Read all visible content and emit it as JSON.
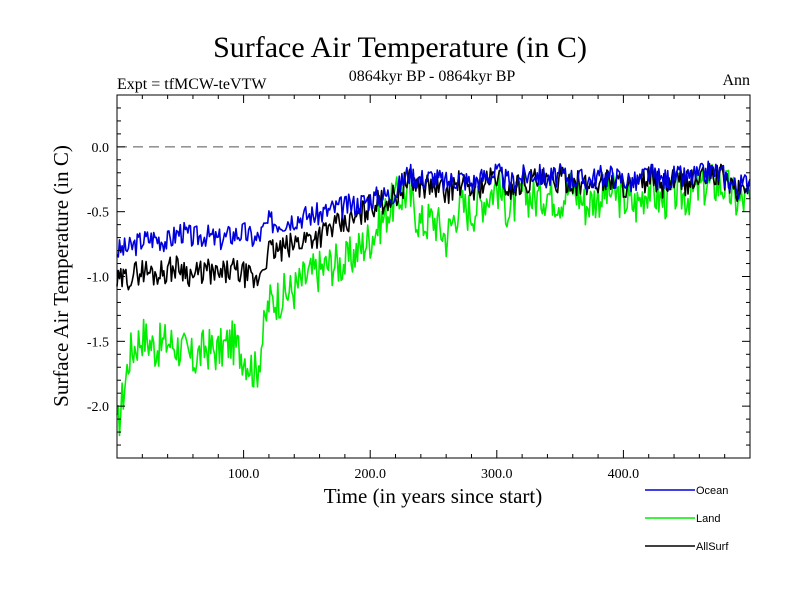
{
  "chart_data": {
    "type": "line",
    "title": "Surface Air Temperature (in C)",
    "subtitle_left": "Expt = tfMCW-teVTW",
    "subtitle_center": "0864kyr BP - 0864kyr BP",
    "subtitle_right": "Ann",
    "xlabel": "Time (in years since start)",
    "ylabel": "Surface Air Temperature (in C)",
    "xlim": [
      0,
      500
    ],
    "ylim": [
      -2.4,
      0.4
    ],
    "x_ticks": [
      100,
      200,
      300,
      400
    ],
    "x_tick_labels": [
      "100.0",
      "200.0",
      "300.0",
      "400.0"
    ],
    "y_ticks": [
      0.0,
      -0.5,
      -1.0,
      -1.5,
      -2.0
    ],
    "y_tick_labels": [
      "0.0",
      "-0.5",
      "-1.0",
      "-1.5",
      "-2.0"
    ],
    "reference_line": {
      "y": 0.0,
      "style": "dashed"
    },
    "series": [
      {
        "name": "Ocean",
        "color": "#0000dd",
        "x": [
          0,
          10,
          20,
          30,
          40,
          50,
          60,
          70,
          80,
          90,
          100,
          110,
          120,
          130,
          140,
          150,
          160,
          170,
          180,
          190,
          200,
          210,
          220,
          230,
          240,
          250,
          260,
          270,
          280,
          290,
          300,
          310,
          320,
          330,
          340,
          350,
          360,
          370,
          380,
          390,
          400,
          410,
          420,
          430,
          440,
          450,
          460,
          470,
          480,
          490,
          500
        ],
        "values": [
          -0.8,
          -0.78,
          -0.72,
          -0.7,
          -0.73,
          -0.65,
          -0.7,
          -0.68,
          -0.72,
          -0.68,
          -0.66,
          -0.72,
          -0.58,
          -0.58,
          -0.55,
          -0.53,
          -0.52,
          -0.48,
          -0.46,
          -0.44,
          -0.4,
          -0.38,
          -0.35,
          -0.2,
          -0.25,
          -0.23,
          -0.28,
          -0.23,
          -0.28,
          -0.23,
          -0.2,
          -0.28,
          -0.23,
          -0.2,
          -0.25,
          -0.22,
          -0.24,
          -0.26,
          -0.23,
          -0.22,
          -0.25,
          -0.28,
          -0.2,
          -0.26,
          -0.23,
          -0.24,
          -0.22,
          -0.18,
          -0.22,
          -0.32,
          -0.25
        ]
      },
      {
        "name": "Land",
        "color": "#00ee00",
        "x": [
          0,
          10,
          20,
          30,
          40,
          50,
          60,
          70,
          80,
          90,
          100,
          110,
          120,
          130,
          140,
          150,
          160,
          170,
          180,
          190,
          200,
          210,
          220,
          230,
          240,
          250,
          260,
          270,
          280,
          290,
          300,
          310,
          320,
          330,
          340,
          350,
          360,
          370,
          380,
          390,
          400,
          410,
          420,
          430,
          440,
          450,
          460,
          470,
          480,
          490,
          500
        ],
        "values": [
          -2.2,
          -1.6,
          -1.45,
          -1.55,
          -1.5,
          -1.55,
          -1.65,
          -1.55,
          -1.58,
          -1.5,
          -1.6,
          -1.75,
          -1.2,
          -1.15,
          -1.1,
          -1.0,
          -0.95,
          -0.9,
          -0.9,
          -0.8,
          -0.7,
          -0.55,
          -0.4,
          -0.35,
          -0.6,
          -0.55,
          -0.7,
          -0.45,
          -0.5,
          -0.4,
          -0.3,
          -0.5,
          -0.35,
          -0.4,
          -0.35,
          -0.4,
          -0.3,
          -0.45,
          -0.38,
          -0.35,
          -0.4,
          -0.45,
          -0.3,
          -0.42,
          -0.35,
          -0.38,
          -0.32,
          -0.28,
          -0.3,
          -0.42,
          -0.4
        ]
      },
      {
        "name": "AllSurf",
        "color": "#000000",
        "x": [
          0,
          10,
          20,
          30,
          40,
          50,
          60,
          70,
          80,
          90,
          100,
          110,
          120,
          130,
          140,
          150,
          160,
          170,
          180,
          190,
          200,
          210,
          220,
          230,
          240,
          250,
          260,
          270,
          280,
          290,
          300,
          310,
          320,
          330,
          340,
          350,
          360,
          370,
          380,
          390,
          400,
          410,
          420,
          430,
          440,
          450,
          460,
          470,
          480,
          490,
          500
        ],
        "values": [
          -1.05,
          -1.0,
          -0.95,
          -0.98,
          -0.95,
          -0.92,
          -1.0,
          -0.95,
          -1.0,
          -0.95,
          -0.98,
          -1.05,
          -0.8,
          -0.8,
          -0.75,
          -0.7,
          -0.68,
          -0.62,
          -0.6,
          -0.55,
          -0.45,
          -0.42,
          -0.38,
          -0.25,
          -0.3,
          -0.3,
          -0.35,
          -0.28,
          -0.33,
          -0.28,
          -0.22,
          -0.33,
          -0.27,
          -0.25,
          -0.28,
          -0.26,
          -0.26,
          -0.31,
          -0.27,
          -0.25,
          -0.29,
          -0.33,
          -0.23,
          -0.3,
          -0.27,
          -0.28,
          -0.25,
          -0.2,
          -0.24,
          -0.35,
          -0.28
        ]
      }
    ],
    "legend": {
      "placement": "bottom-right",
      "entries": [
        "Ocean",
        "Land",
        "AllSurf"
      ]
    }
  }
}
